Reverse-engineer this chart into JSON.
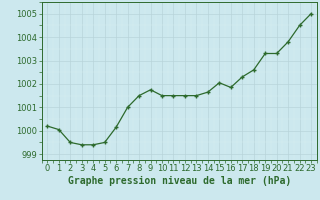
{
  "x": [
    0,
    1,
    2,
    3,
    4,
    5,
    6,
    7,
    8,
    9,
    10,
    11,
    12,
    13,
    14,
    15,
    16,
    17,
    18,
    19,
    20,
    21,
    22,
    23
  ],
  "y": [
    1000.2,
    1000.05,
    999.5,
    999.4,
    999.4,
    999.5,
    1000.15,
    1001.0,
    1001.5,
    1001.75,
    1001.5,
    1001.5,
    1001.5,
    1001.5,
    1001.65,
    1002.05,
    1001.85,
    1002.3,
    1002.6,
    1003.3,
    1003.3,
    1003.8,
    1004.5,
    1005.0
  ],
  "line_color": "#2d6a2d",
  "marker_color": "#2d6a2d",
  "bg_color": "#cce8ee",
  "grid_color_major": "#b8d4da",
  "grid_color_minor": "#daeef2",
  "xlabel": "Graphe pression niveau de la mer (hPa)",
  "ylim": [
    998.75,
    1005.5
  ],
  "xlim": [
    -0.5,
    23.5
  ],
  "yticks": [
    999,
    1000,
    1001,
    1002,
    1003,
    1004,
    1005
  ],
  "xticks": [
    0,
    1,
    2,
    3,
    4,
    5,
    6,
    7,
    8,
    9,
    10,
    11,
    12,
    13,
    14,
    15,
    16,
    17,
    18,
    19,
    20,
    21,
    22,
    23
  ],
  "xlabel_color": "#2d6a2d",
  "xlabel_fontsize": 7,
  "tick_fontsize": 6,
  "tick_color": "#2d6a2d",
  "spine_color": "#2d6a2d"
}
